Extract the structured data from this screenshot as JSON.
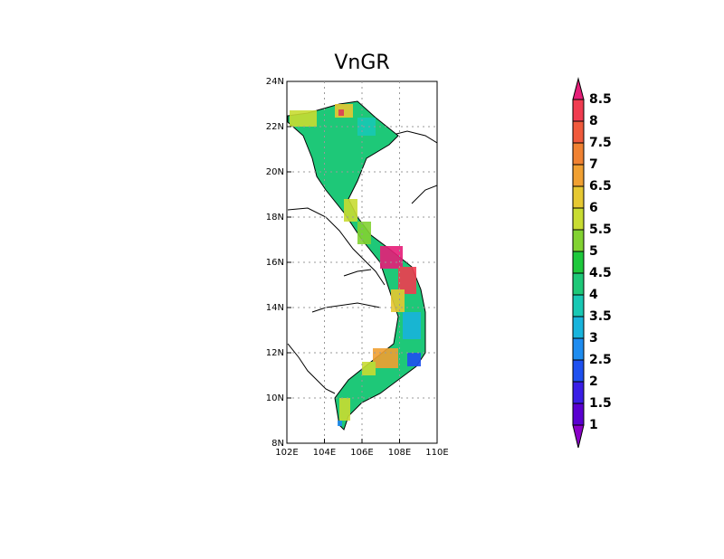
{
  "title": "VnGR",
  "map": {
    "xlim": [
      102,
      110
    ],
    "ylim": [
      8,
      24
    ],
    "xticks": [
      {
        "value": 102,
        "label": "102E"
      },
      {
        "value": 104,
        "label": "104E"
      },
      {
        "value": 106,
        "label": "106E"
      },
      {
        "value": 108,
        "label": "108E"
      },
      {
        "value": 110,
        "label": "110E"
      }
    ],
    "yticks": [
      {
        "value": 8,
        "label": "8N"
      },
      {
        "value": 10,
        "label": "10N"
      },
      {
        "value": 12,
        "label": "12N"
      },
      {
        "value": 14,
        "label": "14N"
      },
      {
        "value": 16,
        "label": "16N"
      },
      {
        "value": 18,
        "label": "18N"
      },
      {
        "value": 20,
        "label": "20N"
      },
      {
        "value": 22,
        "label": "22N"
      },
      {
        "value": 24,
        "label": "24N"
      }
    ],
    "grid": true
  },
  "colorbar": {
    "levels": [
      1,
      1.5,
      2,
      2.5,
      3,
      3.5,
      4,
      4.5,
      5,
      5.5,
      6,
      6.5,
      7,
      7.5,
      8,
      8.5
    ],
    "colors": [
      "#8a00c8",
      "#5a00d0",
      "#3a1ee6",
      "#1e50f0",
      "#1e8cf0",
      "#18b4dc",
      "#18c8b4",
      "#1ec878",
      "#1ec83c",
      "#82d232",
      "#c8dc32",
      "#e6c832",
      "#f0a032",
      "#f08232",
      "#f05a3c",
      "#f03c50",
      "#e61e78"
    ]
  }
}
